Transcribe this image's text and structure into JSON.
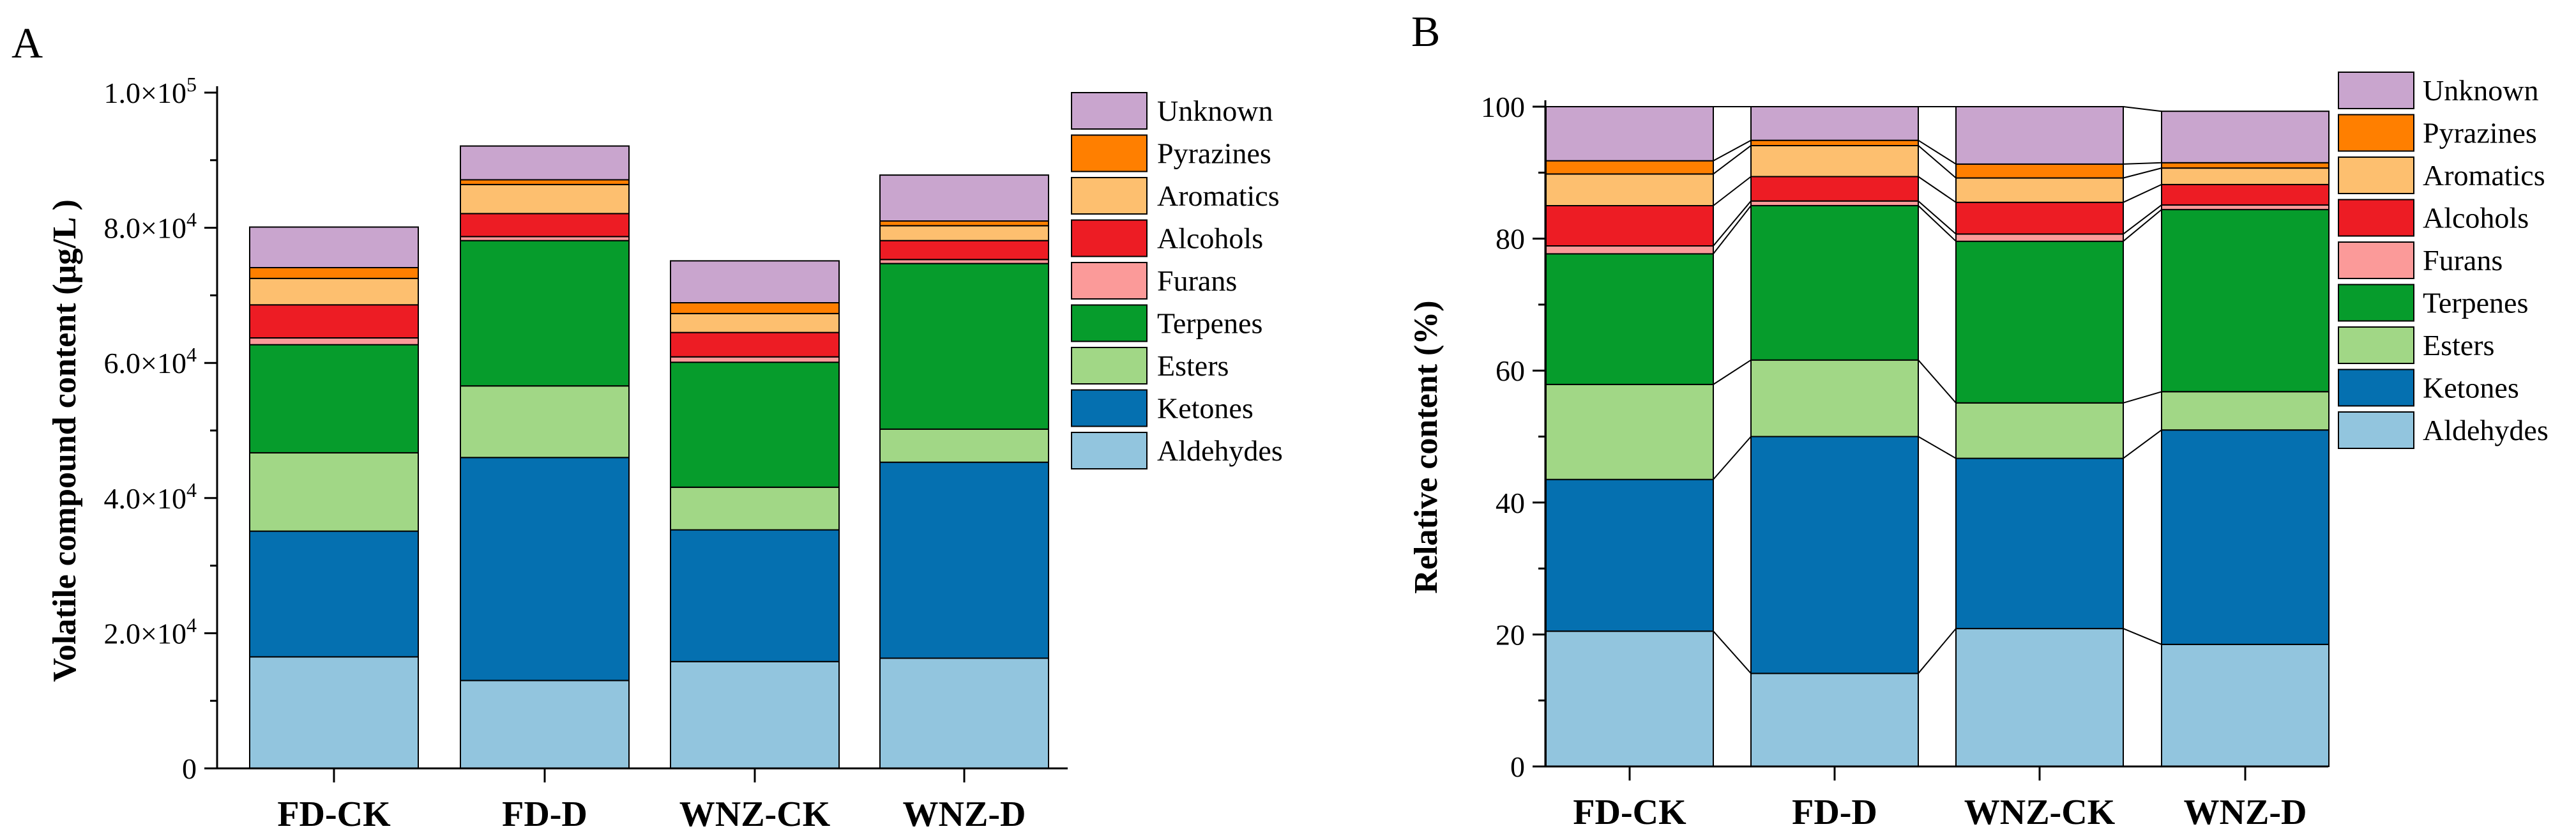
{
  "chart_data": [
    {
      "type": "bar",
      "stacked": true,
      "panel_label": "A",
      "title": "",
      "xlabel": "",
      "ylabel": "Volatile compound content (μg/L )",
      "ylim": [
        0,
        100000
      ],
      "yticks": [
        0,
        20000,
        40000,
        60000,
        80000,
        100000
      ],
      "ytick_labels": [
        "0",
        "2.0×10",
        "4.0×10",
        "6.0×10",
        "8.0×10",
        "1.0×10"
      ],
      "ytick_exponents": [
        "",
        "4",
        "4",
        "4",
        "4",
        "5"
      ],
      "categories": [
        "FD-CK",
        "FD-D",
        "WNZ-CK",
        "WNZ-D"
      ],
      "legend": [
        "Unknown",
        "Pyrazines",
        "Aromatics",
        "Alcohols",
        "Furans",
        "Terpenes",
        "Esters",
        "Ketones",
        "Aldehydes"
      ],
      "legend_position": "top-right",
      "series": [
        {
          "name": "Aldehydes",
          "color": "#92C5DE",
          "values": [
            16500,
            13000,
            15800,
            16300
          ]
        },
        {
          "name": "Ketones",
          "color": "#0570B0",
          "values": [
            18600,
            33000,
            19500,
            29000
          ]
        },
        {
          "name": "Esters",
          "color": "#A1D786",
          "values": [
            11600,
            10600,
            6300,
            4900
          ]
        },
        {
          "name": "Terpenes",
          "color": "#069C2C",
          "values": [
            16000,
            21500,
            18500,
            24500
          ]
        },
        {
          "name": "Furans",
          "color": "#FB9A99",
          "values": [
            1000,
            600,
            800,
            600
          ]
        },
        {
          "name": "Alcohols",
          "color": "#ED1C24",
          "values": [
            4900,
            3400,
            3600,
            2800
          ]
        },
        {
          "name": "Aromatics",
          "color": "#FDBF6F",
          "values": [
            3900,
            4300,
            2800,
            2200
          ]
        },
        {
          "name": "Pyrazines",
          "color": "#FF7F00",
          "values": [
            1600,
            700,
            1600,
            700
          ]
        },
        {
          "name": "Unknown",
          "color": "#C9A5CE",
          "values": [
            6000,
            5000,
            6200,
            6800
          ]
        }
      ]
    },
    {
      "type": "bar",
      "stacked": true,
      "panel_label": "B",
      "title": "",
      "xlabel": "",
      "ylabel": "Relative content (%)",
      "ylim": [
        0,
        100
      ],
      "yticks": [
        0,
        20,
        40,
        60,
        80,
        100
      ],
      "ytick_labels": [
        "0",
        "20",
        "40",
        "60",
        "80",
        "100"
      ],
      "categories": [
        "FD-CK",
        "FD-D",
        "WNZ-CK",
        "WNZ-D"
      ],
      "legend": [
        "Unknown",
        "Pyrazines",
        "Aromatics",
        "Alcohols",
        "Furans",
        "Terpenes",
        "Esters",
        "Ketones",
        "Aldehydes"
      ],
      "legend_position": "top-right",
      "connecting_lines": true,
      "series": [
        {
          "name": "Aldehydes",
          "color": "#92C5DE",
          "values": [
            20.5,
            14.1,
            20.9,
            18.5
          ]
        },
        {
          "name": "Ketones",
          "color": "#0570B0",
          "values": [
            23.0,
            35.9,
            25.8,
            32.5
          ]
        },
        {
          "name": "Esters",
          "color": "#A1D786",
          "values": [
            14.4,
            11.6,
            8.4,
            5.8
          ]
        },
        {
          "name": "Terpenes",
          "color": "#069C2C",
          "values": [
            19.8,
            23.4,
            24.5,
            27.6
          ]
        },
        {
          "name": "Furans",
          "color": "#FB9A99",
          "values": [
            1.2,
            0.7,
            1.1,
            0.7
          ]
        },
        {
          "name": "Alcohols",
          "color": "#ED1C24",
          "values": [
            6.1,
            3.7,
            4.8,
            3.1
          ]
        },
        {
          "name": "Aromatics",
          "color": "#FDBF6F",
          "values": [
            4.8,
            4.7,
            3.7,
            2.5
          ]
        },
        {
          "name": "Pyrazines",
          "color": "#FF7F00",
          "values": [
            2.0,
            0.8,
            2.1,
            0.8
          ]
        },
        {
          "name": "Unknown",
          "color": "#C9A5CE",
          "values": [
            8.2,
            5.1,
            8.7,
            7.8
          ]
        }
      ]
    }
  ]
}
